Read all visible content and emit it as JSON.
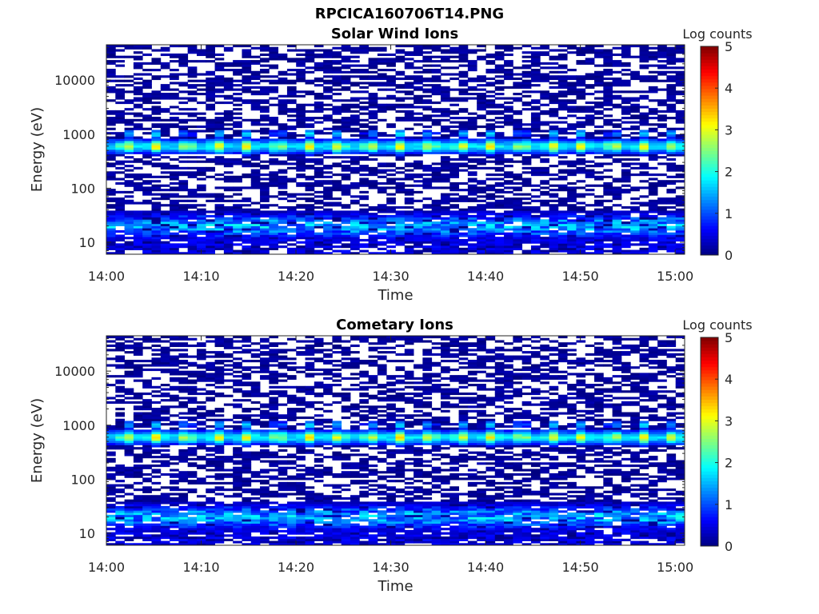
{
  "figure_title": "RPCICA160706T14.PNG",
  "colorbar_colors": [
    "#00008f",
    "#0000ff",
    "#0080ff",
    "#00ffff",
    "#80ff80",
    "#ffff00",
    "#ff8000",
    "#ff0000",
    "#800000"
  ],
  "chart_data": [
    {
      "type": "heatmap",
      "title": "Solar Wind Ions",
      "xlabel": "Time",
      "ylabel": "Energy (eV)",
      "x_range": [
        "14:00",
        "15:01"
      ],
      "x_ticks": [
        "14:00",
        "14:10",
        "14:20",
        "14:30",
        "14:40",
        "14:50",
        "15:00"
      ],
      "y_scale": "log",
      "y_range": [
        6,
        45000
      ],
      "y_ticks": [
        "10",
        "100",
        "1000",
        "10000"
      ],
      "colorbar": {
        "label": "Log counts",
        "range": [
          0,
          5
        ],
        "ticks": [
          "0",
          "1",
          "2",
          "3",
          "4",
          "5"
        ],
        "colormap": "jet"
      },
      "time_bins": 64,
      "energy_bins": 96,
      "pattern": {
        "peak_energy_eV": 600,
        "peak_log_counts": 3,
        "low_energy_peak_eV": 20,
        "low_energy_log_counts": 2,
        "background_log_counts": 0,
        "periodic_bursts_per_hour": 19
      }
    },
    {
      "type": "heatmap",
      "title": "Cometary Ions",
      "xlabel": "Time",
      "ylabel": "Energy (eV)",
      "x_range": [
        "14:00",
        "15:01"
      ],
      "x_ticks": [
        "14:00",
        "14:10",
        "14:20",
        "14:30",
        "14:40",
        "14:50",
        "15:00"
      ],
      "y_scale": "log",
      "y_range": [
        6,
        45000
      ],
      "y_ticks": [
        "10",
        "100",
        "1000",
        "10000"
      ],
      "colorbar": {
        "label": "Log counts",
        "range": [
          0,
          5
        ],
        "ticks": [
          "0",
          "1",
          "2",
          "3",
          "4",
          "5"
        ],
        "colormap": "jet"
      },
      "time_bins": 64,
      "energy_bins": 96,
      "pattern": {
        "peak_energy_eV": 600,
        "peak_log_counts": 3,
        "low_energy_peak_eV": 20,
        "low_energy_log_counts": 2,
        "background_log_counts": 0,
        "periodic_bursts_per_hour": 19
      }
    }
  ]
}
